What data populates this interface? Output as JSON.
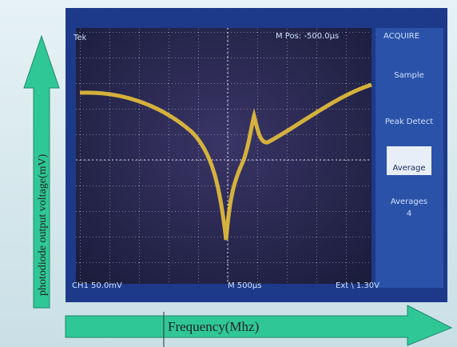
{
  "scope": {
    "brand": "Tek",
    "position": "M Pos: -500.0µs",
    "menu_title": "ACQUIRE",
    "menu": [
      "Sample",
      "Peak Detect",
      "Average",
      "Averages"
    ],
    "averages_value": "4",
    "channel": "CH1  50.0mV",
    "timebase": "M 500µs",
    "trigger": "Ext  \\  1.30V"
  },
  "axes": {
    "y_label": "photodiode output voltage(mV)",
    "x_label": "Frequency(Mhz)"
  }
}
